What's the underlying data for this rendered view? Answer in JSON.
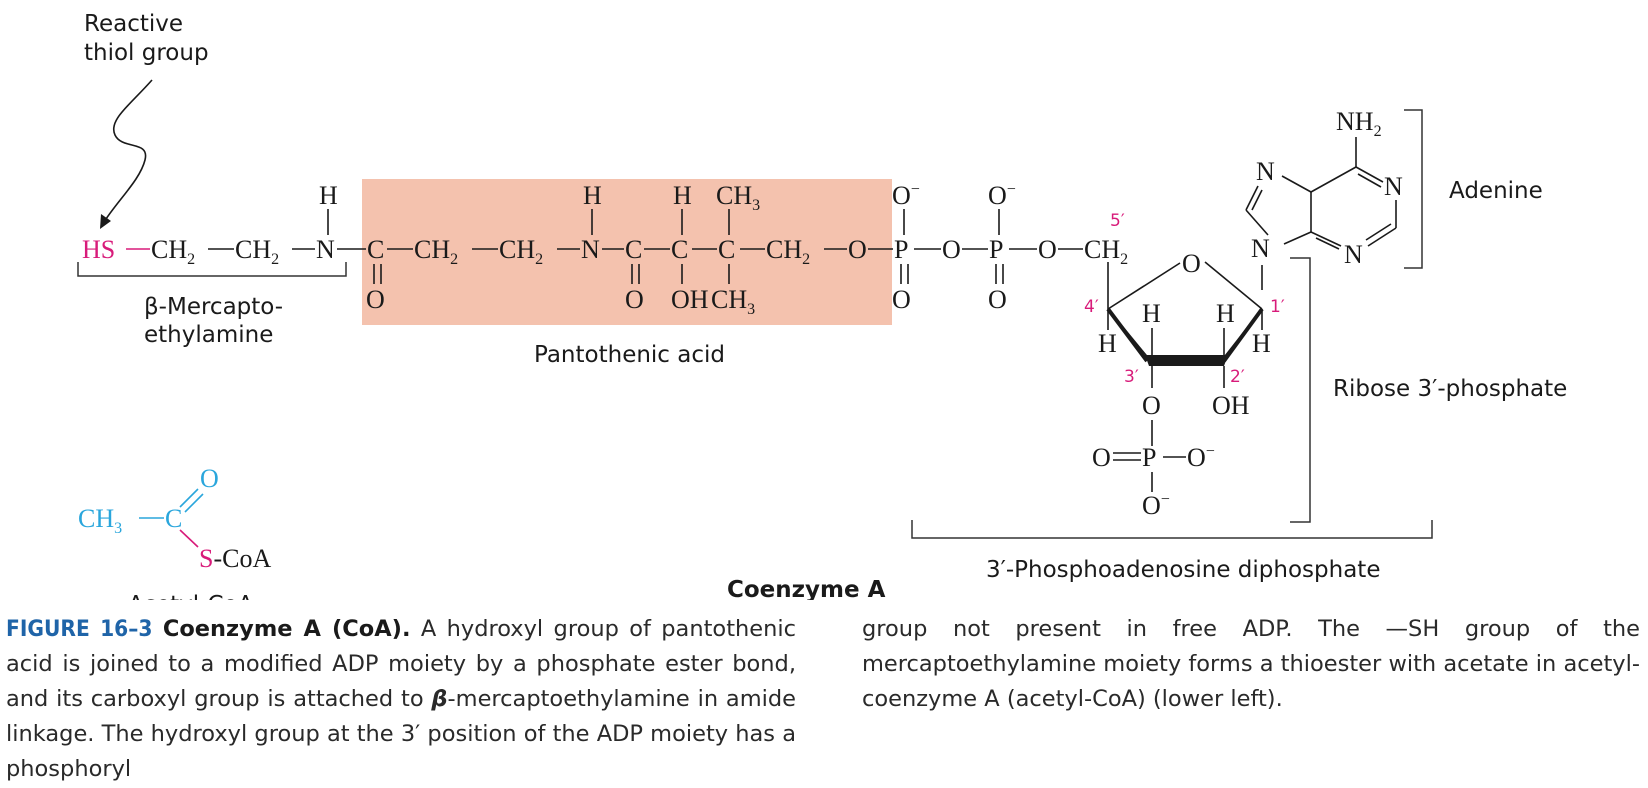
{
  "labels": {
    "reactive_thiol_line1": "Reactive",
    "reactive_thiol_line2": "thiol group",
    "mercapto_line1": "β-Mercapto-",
    "mercapto_line2": "ethylamine",
    "pantothenic": "Pantothenic acid",
    "adenine": "Adenine",
    "ribose": "Ribose 3′-phosphate",
    "phosphoadenosine": "3′-Phosphoadenosine diphosphate",
    "coenzyme_a": "Coenzyme A",
    "acetyl_coa": "Acetyl-CoA"
  },
  "chain": {
    "hs": "HS",
    "ch2_a": "CH",
    "ch2_b": "CH",
    "n1": "N",
    "h_n1": "H",
    "c1": "C",
    "o_c1": "O",
    "ch2_c": "CH",
    "ch2_d": "CH",
    "n2": "N",
    "h_n2": "H",
    "c2": "C",
    "o_c2": "O",
    "c3": "C",
    "h_c3": "H",
    "oh_c3": "OH",
    "c4": "C",
    "ch3_top": "CH",
    "ch3_bottom": "CH",
    "ch2_e": "CH",
    "o_link": "O",
    "p1": "P",
    "o_p1_top": "O",
    "o_p1_bottom": "O",
    "o_mid": "O",
    "p2": "P",
    "o_p2_top": "O",
    "o_p2_bottom": "O",
    "o_link2": "O",
    "ch2_5": "CH",
    "sub2": "2",
    "sub3": "3",
    "minus": "−"
  },
  "ribose": {
    "ring_o": "O",
    "h4": "H",
    "h3_top": "H",
    "h3": "H",
    "h2_top": "H",
    "h1": "H",
    "oh2": "OH",
    "o3": "O",
    "p3": "P",
    "o_p3_left": "O",
    "o_p3_right": "O",
    "o_p3_bottom": "O",
    "n_glyco": "N",
    "pos_5": "5′",
    "pos_4": "4′",
    "pos_3": "3′",
    "pos_2": "2′",
    "pos_1": "1′"
  },
  "adenine": {
    "nh2": "NH",
    "n_a": "N",
    "n_b": "N",
    "n_c": "N"
  },
  "acetyl": {
    "ch3": "CH",
    "c": "C",
    "o": "O",
    "s": "S",
    "coa": "-CoA"
  },
  "caption": {
    "figure_number": "FIGURE 16–3",
    "title": "Coenzyme A (CoA).",
    "text_part1": "A hydroxyl group of pantothenic acid is joined to a modified ADP moiety by a phosphate ester bond, and its carboxyl group is attached to",
    "beta": "β",
    "text_part2": "-mercaptoethylamine in amide linkage. The hydroxyl group at the 3′ position of the ADP moiety has a phosphoryl",
    "text_col2": "group not present in free ADP. The —SH group of the mercaptoethylamine moiety forms a thioester with acetate in acetyl-coenzyme A (acetyl-CoA) (lower left)."
  },
  "colors": {
    "thiol": "#d81b7a",
    "acetyl": "#2aa6dc",
    "pantothenic_box": "#f4c2ae",
    "figure_number": "#1f64a8"
  }
}
